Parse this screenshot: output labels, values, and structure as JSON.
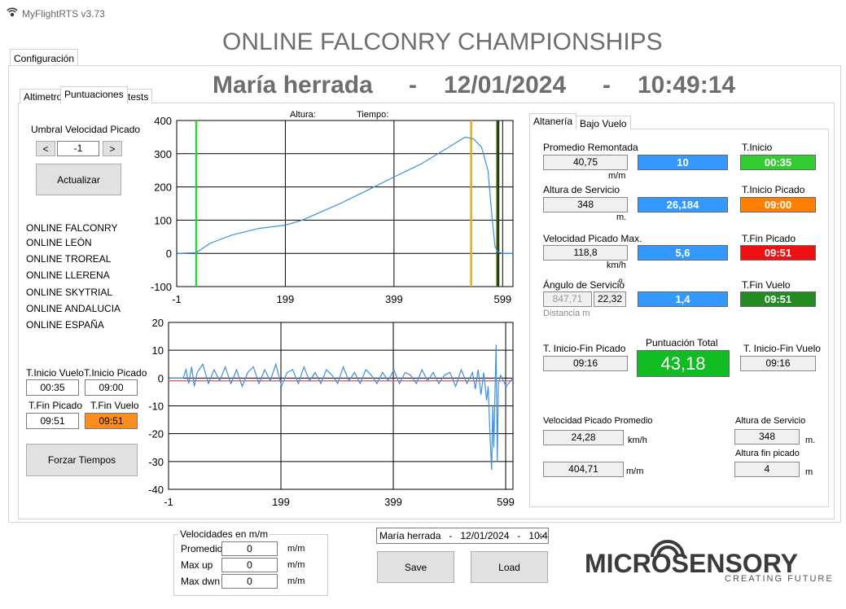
{
  "window": {
    "title": "MyFlightRTS v3.73"
  },
  "tabs": [
    "Configuración"
  ],
  "header": {
    "title": "ONLINE FALCONRY CHAMPIONSHIPS",
    "pilot": "María herrada",
    "separator": "-",
    "date": "12/01/2024",
    "time": "10:49:14"
  },
  "inner_tabs": [
    "Altimetro",
    "Puntuaciones",
    "tests"
  ],
  "left_panel": {
    "threshold_label": "Umbral Velocidad Picado",
    "decrement": "<",
    "threshold_value": "-1",
    "increment": ">",
    "update_button": "Actualizar",
    "sources": [
      "ONLINE FALCONRY",
      "ONLINE LEÓN",
      "ONLINE TROREAL",
      "ONLINE LLERENA",
      "ONLINE SKYTRIAL",
      "ONLINE ANDALUCIA",
      "ONLINE ESPAÑA"
    ],
    "flight_start": {
      "label": "T.Inicio Vuelo",
      "value": "00:35"
    },
    "dive_start": {
      "label": "T.Inicio Picado",
      "value": "09:00"
    },
    "dive_end": {
      "label": "T.Fin Picado",
      "value": "09:51"
    },
    "flight_end": {
      "label": "T.Fin Vuelo",
      "value": "09:51"
    },
    "force_button": "Forzar Tiempos"
  },
  "charts": {
    "altitude": {
      "type": "line",
      "labels": [
        "Altura:",
        "Tiempo:"
      ],
      "xlim": [
        -1,
        618
      ],
      "ylim": [
        -100,
        400
      ],
      "xticks": [
        -1,
        199,
        399,
        599
      ],
      "yticks": [
        -100,
        0,
        100,
        200,
        300,
        400
      ],
      "grid": true,
      "color": "#3d8fe0",
      "x": [
        0,
        35,
        60,
        100,
        150,
        199,
        230,
        300,
        350,
        399,
        450,
        500,
        530,
        545,
        560,
        572,
        580,
        585,
        590,
        598,
        618
      ],
      "values": [
        0,
        2,
        30,
        55,
        75,
        85,
        100,
        150,
        190,
        230,
        270,
        320,
        350,
        345,
        320,
        250,
        100,
        20,
        5,
        0,
        0
      ],
      "markers": [
        {
          "x": 35,
          "color": "#2ed12e"
        },
        {
          "x": 541,
          "color": "#f0a818"
        },
        {
          "x": 589,
          "color": "#556b10"
        },
        {
          "x": 591,
          "color": "#1f3d10"
        }
      ]
    },
    "speed": {
      "type": "line",
      "xlim": [
        -1,
        612
      ],
      "ylim": [
        -40,
        20
      ],
      "xticks": [
        -1,
        199,
        399,
        599
      ],
      "yticks": [
        -40,
        -30,
        -20,
        -10,
        0,
        10,
        20
      ],
      "grid": true,
      "color": "#3d8fe0",
      "reference": -1,
      "reference_color": "#e05050",
      "x": [
        0,
        25,
        30,
        35,
        40,
        45,
        50,
        60,
        70,
        80,
        90,
        100,
        110,
        120,
        130,
        140,
        150,
        160,
        170,
        180,
        190,
        200,
        210,
        220,
        230,
        240,
        250,
        260,
        270,
        280,
        290,
        300,
        310,
        320,
        330,
        340,
        350,
        360,
        370,
        380,
        390,
        400,
        410,
        420,
        430,
        440,
        450,
        460,
        470,
        480,
        490,
        500,
        510,
        520,
        530,
        540,
        545,
        550,
        555,
        560,
        565,
        568,
        571,
        574,
        576,
        578,
        580,
        582,
        584,
        586,
        590,
        600,
        612
      ],
      "values": [
        0,
        0,
        3,
        -2,
        4,
        -3,
        2,
        5,
        -2,
        3,
        -1,
        4,
        -2,
        3,
        -3,
        2,
        4,
        -2,
        3,
        -1,
        5,
        -3,
        2,
        3,
        -2,
        4,
        -1,
        2,
        -2,
        3,
        1,
        -2,
        4,
        -1,
        2,
        -2,
        3,
        1,
        -2,
        2,
        -1,
        3,
        -2,
        2,
        1,
        -2,
        3,
        -1,
        2,
        -2,
        1,
        2,
        -3,
        3,
        -2,
        2,
        -4,
        3,
        -6,
        2,
        -8,
        -3,
        -20,
        -33,
        -10,
        -25,
        -5,
        12,
        -30,
        -2,
        1,
        -3,
        0
      ]
    }
  },
  "right_panel": {
    "tabs": [
      "Altanería",
      "Bajo Vuelo"
    ],
    "climb": {
      "label": "Promedio Remontada",
      "value": "40,75",
      "unit": "m/m",
      "score": "10"
    },
    "service_altitude": {
      "label": "Altura de Servicio",
      "value": "348",
      "unit": "m.",
      "score": "26,184"
    },
    "max_dive_speed": {
      "label": "Velocidad Picado Max.",
      "value": "118,8",
      "unit": "km/h",
      "score": "5,6"
    },
    "service_angle": {
      "label": "Ángulo de Servicio",
      "symbol": "º",
      "distance": "847,71",
      "value": "22,32",
      "distance_label": "Distancia m",
      "score": "1,4"
    },
    "start": {
      "label": "T.Inicio",
      "value": "00:35"
    },
    "dive_start": {
      "label": "T.Inicio Picado",
      "value": "09:00"
    },
    "dive_end": {
      "label": "T.Fin Picado",
      "value": "09:51"
    },
    "flight_end": {
      "label": "T.Fin Vuelo",
      "value": "09:51"
    },
    "dive_duration": {
      "label": "T. Inicio-Fin Picado",
      "value": "09:16"
    },
    "total": {
      "label": "Puntuación Total",
      "value": "43,18"
    },
    "flight_duration": {
      "label": "T. Inicio-Fin Vuelo",
      "value": "09:16"
    },
    "avg_dive_speed": {
      "label": "Velocidad Picado Promedio",
      "value": "24,28",
      "unit": "km/h",
      "rate": "404,71",
      "rate_unit": "m/m"
    },
    "service_altitude_2": {
      "label": "Altura de Servicio",
      "value": "348",
      "unit": "m."
    },
    "dive_end_altitude": {
      "label": "Altura fin picado",
      "value": "4",
      "unit": "m"
    }
  },
  "bottom": {
    "speeds": {
      "title": "Velocidades en m/m",
      "rows": [
        {
          "label": "Promedio",
          "value": "0",
          "unit": "m/m"
        },
        {
          "label": "Max up",
          "value": "0",
          "unit": "m/m"
        },
        {
          "label": "Max dwn",
          "value": "0",
          "unit": "m/m"
        }
      ]
    },
    "selector": "María herrada   -   12/01/2024   -   10:4",
    "save": "Save",
    "load": "Load",
    "logo": {
      "name": "MICROSENSORY",
      "tagline": "CREATING FUTURE"
    }
  }
}
